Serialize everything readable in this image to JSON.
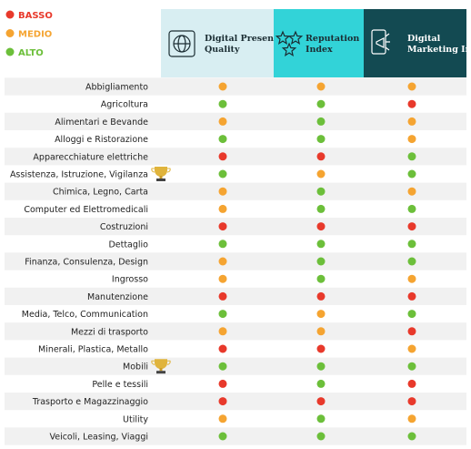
{
  "legend": [
    {
      "label": "BASSO",
      "color": "#e8392b"
    },
    {
      "label": "MEDIO",
      "color": "#f5a431"
    },
    {
      "label": "ALTO",
      "color": "#6cbf3a"
    }
  ],
  "columns": [
    {
      "title": "Digital Presence Quality",
      "background": "#d8eef2",
      "text_color": "#1b2d33"
    },
    {
      "title": "Reputation Index",
      "background": "#32d3d8",
      "text_color": "#1b2d33"
    },
    {
      "title": "Digital Marketing Index",
      "background": "#134a52",
      "text_color": "#ffffff"
    }
  ],
  "rows": [
    {
      "label": "Abbigliamento",
      "levels": [
        1,
        1,
        1
      ]
    },
    {
      "label": "Agricoltura",
      "levels": [
        2,
        2,
        0
      ]
    },
    {
      "label": "Alimentari e Bevande",
      "levels": [
        1,
        2,
        1
      ]
    },
    {
      "label": "Alloggi e Ristorazione",
      "levels": [
        2,
        2,
        1
      ]
    },
    {
      "label": "Apparecchiature elettriche",
      "levels": [
        0,
        0,
        2
      ]
    },
    {
      "label": "Assistenza, Istruzione, Vigilanza",
      "levels": [
        2,
        1,
        2
      ],
      "trophy": true
    },
    {
      "label": "Chimica, Legno, Carta",
      "levels": [
        1,
        2,
        1
      ]
    },
    {
      "label": "Computer ed Elettromedicali",
      "levels": [
        1,
        2,
        2
      ]
    },
    {
      "label": "Costruzioni",
      "levels": [
        0,
        0,
        0
      ]
    },
    {
      "label": "Dettaglio",
      "levels": [
        2,
        2,
        2
      ]
    },
    {
      "label": "Finanza, Consulenza, Design",
      "levels": [
        1,
        2,
        2
      ]
    },
    {
      "label": "Ingrosso",
      "levels": [
        1,
        2,
        1
      ]
    },
    {
      "label": "Manutenzione",
      "levels": [
        0,
        0,
        0
      ]
    },
    {
      "label": "Media, Telco, Communication",
      "levels": [
        2,
        1,
        2
      ]
    },
    {
      "label": "Mezzi di trasporto",
      "levels": [
        1,
        1,
        0
      ]
    },
    {
      "label": "Minerali, Plastica, Metallo",
      "levels": [
        0,
        0,
        1
      ]
    },
    {
      "label": "Mobili",
      "levels": [
        2,
        2,
        2
      ],
      "trophy": true
    },
    {
      "label": "Pelle e tessili",
      "levels": [
        0,
        2,
        0
      ]
    },
    {
      "label": "Trasporto e Magazzinaggio",
      "levels": [
        0,
        0,
        0
      ]
    },
    {
      "label": "Utility",
      "levels": [
        1,
        2,
        1
      ]
    },
    {
      "label": "Veicoli, Leasing, Viaggi",
      "levels": [
        2,
        2,
        2
      ]
    }
  ]
}
